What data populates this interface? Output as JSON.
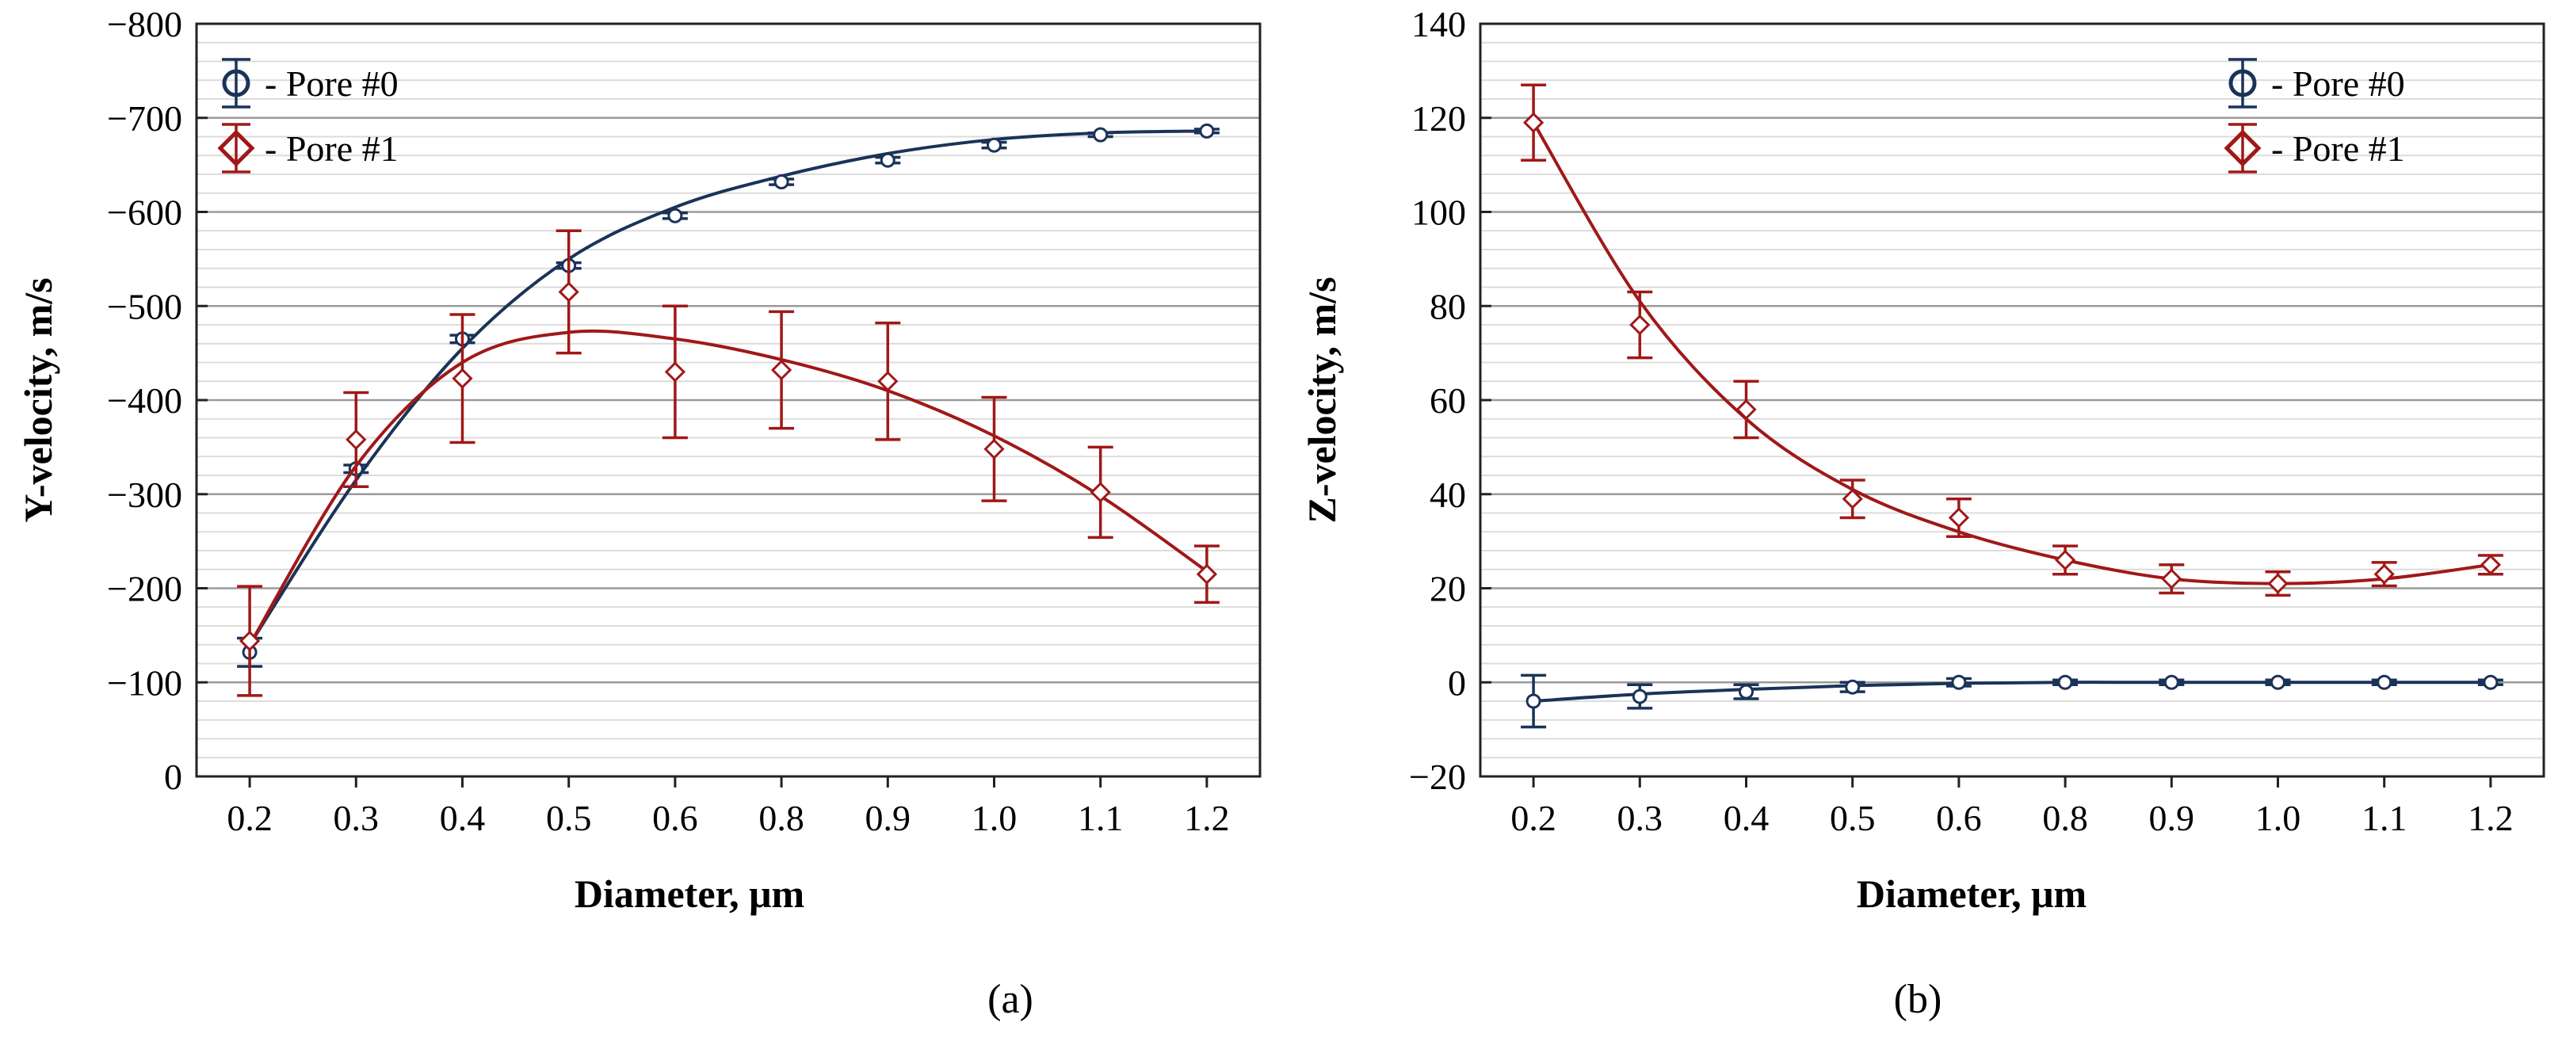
{
  "chart_data": [
    {
      "type": "scatter",
      "panel_label": "(a)",
      "xlabel": "Diameter, μm",
      "ylabel": "Y-velocity, m/s",
      "categories": [
        "0.2",
        "0.3",
        "0.4",
        "0.5",
        "0.6",
        "0.8",
        "0.9",
        "1.0",
        "1.1",
        "1.2"
      ],
      "ylim": [
        0,
        -800
      ],
      "yticks": [
        "0",
        "−100",
        "−200",
        "−300",
        "−400",
        "−500",
        "−600",
        "−700",
        "−800"
      ],
      "ytick_values": [
        0,
        -100,
        -200,
        -300,
        -400,
        -500,
        -600,
        -700,
        -800
      ],
      "grid": true,
      "legend_position": "top-left",
      "series": [
        {
          "name": "- Pore #0",
          "marker": "circle",
          "color": "#1a3358",
          "values": [
            -132,
            -327,
            -465,
            -543,
            -596,
            -632,
            -655,
            -671,
            -682,
            -686
          ],
          "errors": [
            15,
            4,
            4,
            3,
            3,
            3,
            3,
            3,
            2,
            2
          ],
          "fit": [
            -140,
            -315,
            -455,
            -550,
            -605,
            -638,
            -662,
            -677,
            -684,
            -686
          ]
        },
        {
          "name": "- Pore #1",
          "marker": "diamond",
          "color": "#a01818",
          "values": [
            -144,
            -358,
            -423,
            -515,
            -430,
            -432,
            -420,
            -348,
            -302,
            -215
          ],
          "errors": [
            58,
            50,
            68,
            65,
            70,
            62,
            62,
            55,
            48,
            30
          ],
          "fit": [
            -140,
            -330,
            -440,
            -472,
            -465,
            -443,
            -410,
            -362,
            -298,
            -218
          ]
        }
      ]
    },
    {
      "type": "scatter",
      "panel_label": "(b)",
      "xlabel": "Diameter, μm",
      "ylabel": "Z-velocity, m/s",
      "categories": [
        "0.2",
        "0.3",
        "0.4",
        "0.5",
        "0.6",
        "0.8",
        "0.9",
        "1.0",
        "1.1",
        "1.2"
      ],
      "ylim": [
        -20,
        140
      ],
      "yticks": [
        "−20",
        "0",
        "20",
        "40",
        "60",
        "80",
        "100",
        "120",
        "140"
      ],
      "ytick_values": [
        -20,
        0,
        20,
        40,
        60,
        80,
        100,
        120,
        140
      ],
      "grid": true,
      "legend_position": "top-right",
      "series": [
        {
          "name": "- Pore #0",
          "marker": "circle",
          "color": "#1a3358",
          "values": [
            -4,
            -3,
            -2,
            -1,
            0,
            0,
            0,
            0,
            0,
            0
          ],
          "errors": [
            5.5,
            2.5,
            1.5,
            1,
            0.8,
            0.5,
            0.5,
            0.5,
            0.5,
            0.5
          ],
          "fit": [
            -4,
            -2.5,
            -1.5,
            -0.7,
            -0.2,
            0,
            0,
            0,
            0,
            0
          ]
        },
        {
          "name": "- Pore #1",
          "marker": "diamond",
          "color": "#a01818",
          "values": [
            119,
            76,
            58,
            39,
            35,
            26,
            22,
            21,
            23,
            25
          ],
          "errors": [
            8,
            7,
            6,
            4,
            4,
            3,
            3,
            2.5,
            2.5,
            2
          ],
          "fit": [
            119,
            81,
            56,
            41,
            32,
            26,
            22,
            21,
            22,
            25
          ]
        }
      ]
    }
  ]
}
